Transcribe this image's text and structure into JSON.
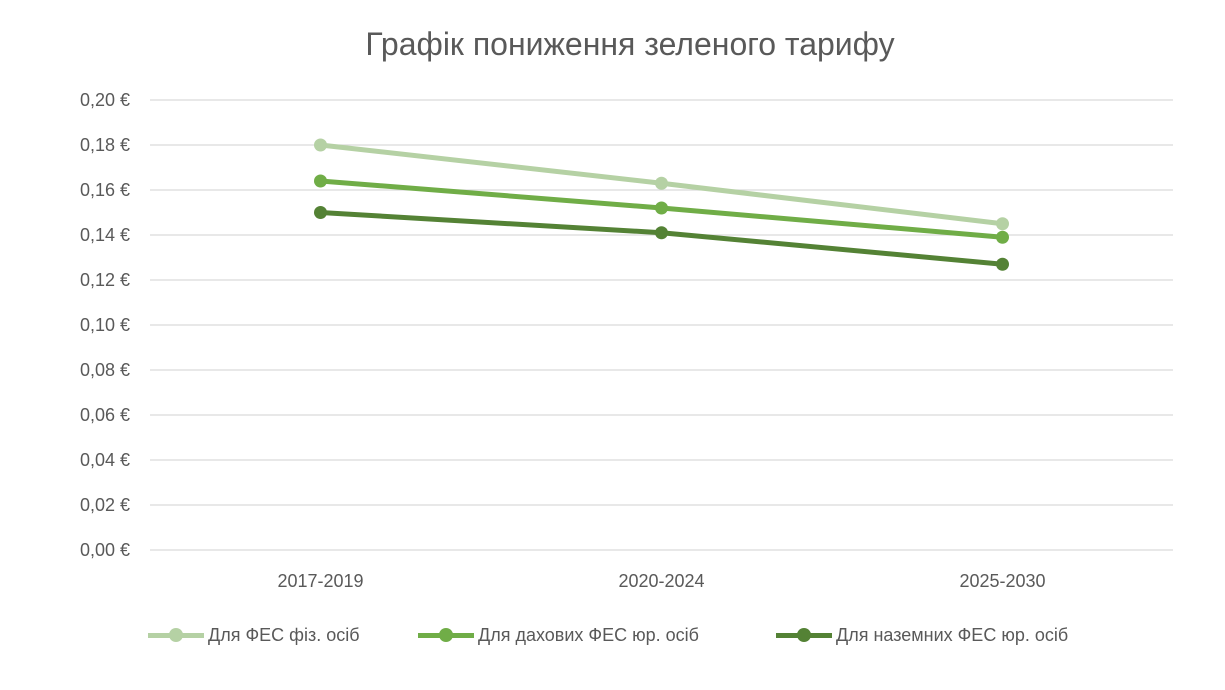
{
  "chart_data": {
    "type": "line",
    "title": "Графік пониження зеленого тарифу",
    "categories": [
      "2017-2019",
      "2020-2024",
      "2025-2030"
    ],
    "y_ticks": [
      "0,00 €",
      "0,02 €",
      "0,04 €",
      "0,06 €",
      "0,08 €",
      "0,10 €",
      "0,12 €",
      "0,14 €",
      "0,16 €",
      "0,18 €",
      "0,20 €"
    ],
    "ylim": [
      0,
      0.2
    ],
    "grid": true,
    "legend_position": "bottom",
    "series": [
      {
        "name": "Для ФЕС фіз. осіб",
        "values": [
          0.18,
          0.163,
          0.145
        ],
        "color": "#b5d1a4"
      },
      {
        "name": "Для дахових ФЕС юр. осіб",
        "values": [
          0.164,
          0.152,
          0.139
        ],
        "color": "#70ad47"
      },
      {
        "name": "Для наземних ФЕС юр. осіб",
        "values": [
          0.15,
          0.141,
          0.127
        ],
        "color": "#548235"
      }
    ]
  }
}
